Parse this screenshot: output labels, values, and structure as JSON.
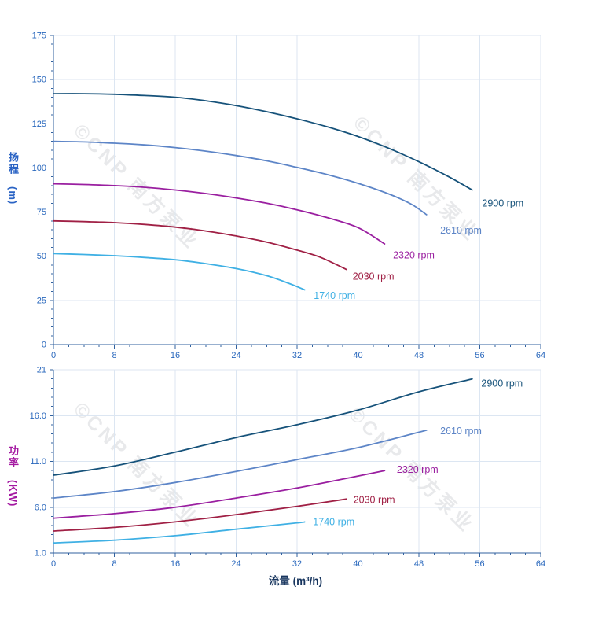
{
  "watermark": {
    "text": "©CNP 南方泵业"
  },
  "xlabel": "流量 (m³/h)",
  "theme": {
    "axis": "#31619f",
    "grid": "#dce6f2",
    "tick_text": "#2a68bd",
    "xlabel_color": "#17355e"
  },
  "chart_data": [
    {
      "type": "line",
      "id": "head",
      "ylabel": "扬程",
      "ylabel_unit": "(m)",
      "ylabel_color": "#2a63c4",
      "xlim": [
        0,
        64
      ],
      "ylim": [
        0,
        175
      ],
      "xticks": [
        0,
        8,
        16,
        24,
        32,
        40,
        48,
        56,
        64
      ],
      "yticks": [
        0,
        25,
        50,
        75,
        100,
        125,
        150,
        175
      ],
      "grid": true,
      "legend_position": "inline-right",
      "series": [
        {
          "name": "2900 rpm",
          "color": "#16527a",
          "x": [
            0,
            4,
            8,
            12,
            16,
            20,
            24,
            28,
            32,
            36,
            40,
            44,
            48,
            52,
            55
          ],
          "y": [
            142,
            142,
            141.7,
            141,
            140,
            138,
            135.3,
            131.8,
            127.8,
            123.2,
            117.8,
            111.2,
            103.5,
            94.8,
            87.5
          ],
          "label_at": [
            56.3,
            80
          ]
        },
        {
          "name": "2610 rpm",
          "color": "#5d85c7",
          "x": [
            0,
            4,
            8,
            12,
            16,
            20,
            24,
            28,
            32,
            36,
            40,
            44,
            47,
            49
          ],
          "y": [
            115,
            114.7,
            114,
            113,
            111.5,
            109.5,
            107,
            104,
            100.3,
            96.2,
            91.3,
            85.3,
            79.5,
            73.5
          ],
          "label_at": [
            50.8,
            64.5
          ]
        },
        {
          "name": "2320 rpm",
          "color": "#9a1fa0",
          "x": [
            0,
            4,
            8,
            12,
            16,
            20,
            24,
            28,
            32,
            36,
            40,
            43.5
          ],
          "y": [
            91,
            90.6,
            90,
            89,
            87.5,
            85.5,
            83,
            80,
            76.3,
            71.8,
            66.2,
            57
          ],
          "label_at": [
            44.6,
            50.5
          ]
        },
        {
          "name": "2030 rpm",
          "color": "#a02045",
          "x": [
            0,
            4,
            8,
            12,
            16,
            20,
            24,
            28,
            32,
            35,
            38.5
          ],
          "y": [
            70,
            69.6,
            69,
            68,
            66.5,
            64.3,
            61.5,
            58,
            53.5,
            49.5,
            42.5
          ],
          "label_at": [
            39.3,
            38.5
          ]
        },
        {
          "name": "1740 rpm",
          "color": "#3fb0e4",
          "x": [
            0,
            4,
            8,
            12,
            16,
            20,
            24,
            28,
            31,
            33
          ],
          "y": [
            51.5,
            51,
            50.3,
            49.3,
            48,
            45.8,
            43,
            39,
            34.5,
            31
          ],
          "label_at": [
            34.2,
            27.5
          ]
        }
      ]
    },
    {
      "type": "line",
      "id": "power",
      "ylabel": "功率",
      "ylabel_unit": "(KW)",
      "ylabel_color": "#a317a0",
      "xlim": [
        0,
        64
      ],
      "ylim": [
        1,
        21
      ],
      "xticks": [
        0,
        8,
        16,
        24,
        32,
        40,
        48,
        56,
        64
      ],
      "yticks": [
        1,
        6,
        11,
        16,
        21
      ],
      "ytick_labels": [
        "1.0",
        "6.0",
        "11.0",
        "16.0",
        "21"
      ],
      "grid": true,
      "legend_position": "inline-right",
      "series": [
        {
          "name": "2900 rpm",
          "color": "#16527a",
          "x": [
            0,
            8,
            16,
            24,
            32,
            40,
            48,
            55
          ],
          "y": [
            9.5,
            10.5,
            12,
            13.6,
            15,
            16.6,
            18.6,
            20
          ],
          "label_at": [
            56.2,
            19.5
          ]
        },
        {
          "name": "2610 rpm",
          "color": "#5d85c7",
          "x": [
            0,
            8,
            16,
            24,
            32,
            40,
            49
          ],
          "y": [
            7,
            7.7,
            8.7,
            9.9,
            11.2,
            12.5,
            14.4
          ],
          "label_at": [
            50.8,
            14.3
          ]
        },
        {
          "name": "2320 rpm",
          "color": "#9a1fa0",
          "x": [
            0,
            8,
            16,
            24,
            32,
            40,
            43.5
          ],
          "y": [
            4.8,
            5.3,
            6,
            7,
            8.1,
            9.4,
            10
          ],
          "label_at": [
            45.1,
            10.1
          ]
        },
        {
          "name": "2030 rpm",
          "color": "#a02045",
          "x": [
            0,
            8,
            16,
            24,
            32,
            38.5
          ],
          "y": [
            3.4,
            3.8,
            4.4,
            5.2,
            6.1,
            6.9
          ],
          "label_at": [
            39.4,
            6.8
          ]
        },
        {
          "name": "1740 rpm",
          "color": "#3fb0e4",
          "x": [
            0,
            8,
            16,
            24,
            32,
            33
          ],
          "y": [
            2.1,
            2.4,
            2.9,
            3.6,
            4.3,
            4.4
          ],
          "label_at": [
            34.1,
            4.4
          ]
        }
      ]
    }
  ]
}
